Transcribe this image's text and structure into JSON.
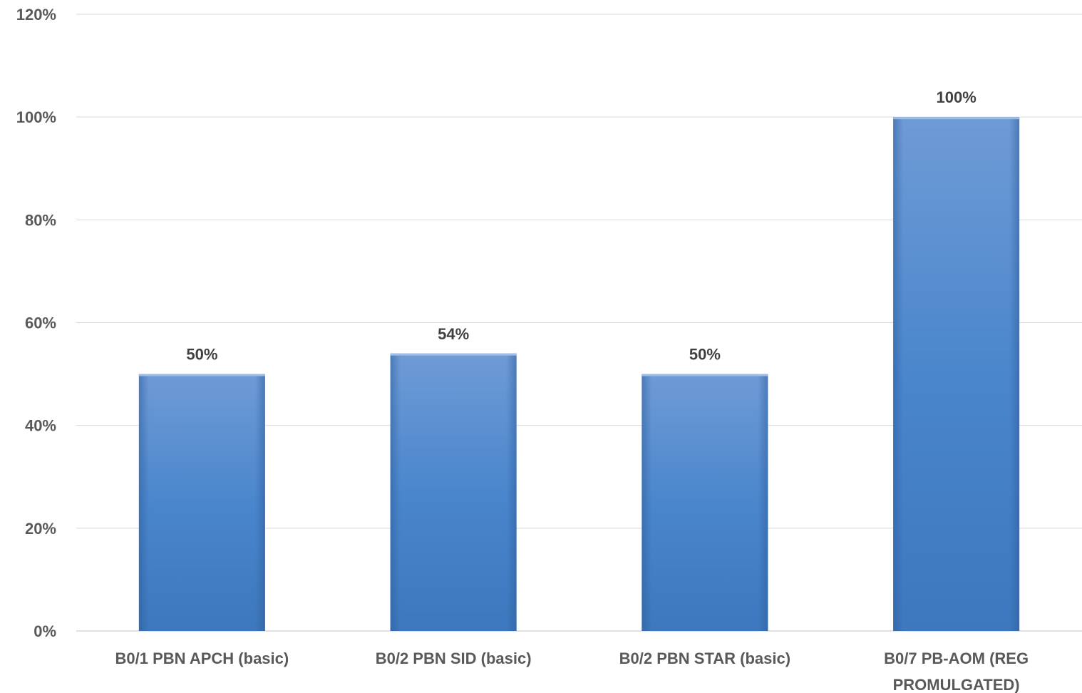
{
  "chart_data": {
    "type": "bar",
    "categories": [
      [
        "B0/1 PBN APCH (basic)"
      ],
      [
        "B0/2 PBN SID (basic)"
      ],
      [
        "B0/2 PBN STAR (basic)"
      ],
      [
        "B0/7 PB-AOM (REG",
        "PROMULGATED)"
      ]
    ],
    "values": [
      0.5,
      0.54,
      0.5,
      1.0
    ],
    "value_labels": [
      "50%",
      "54%",
      "50%",
      "100%"
    ],
    "ylim": [
      0,
      1.2
    ],
    "yticks": [
      {
        "v": 0,
        "label": "0%"
      },
      {
        "v": 0.2,
        "label": "20%"
      },
      {
        "v": 0.4,
        "label": "40%"
      },
      {
        "v": 0.6,
        "label": "60%"
      },
      {
        "v": 0.8,
        "label": "80%"
      },
      {
        "v": 1.0,
        "label": "100%"
      },
      {
        "v": 1.2,
        "label": "120%"
      }
    ],
    "grid": true,
    "bar_color": "#4a86cc",
    "gridline_color": "#d9d9d9",
    "title": "",
    "xlabel": "",
    "ylabel": ""
  }
}
